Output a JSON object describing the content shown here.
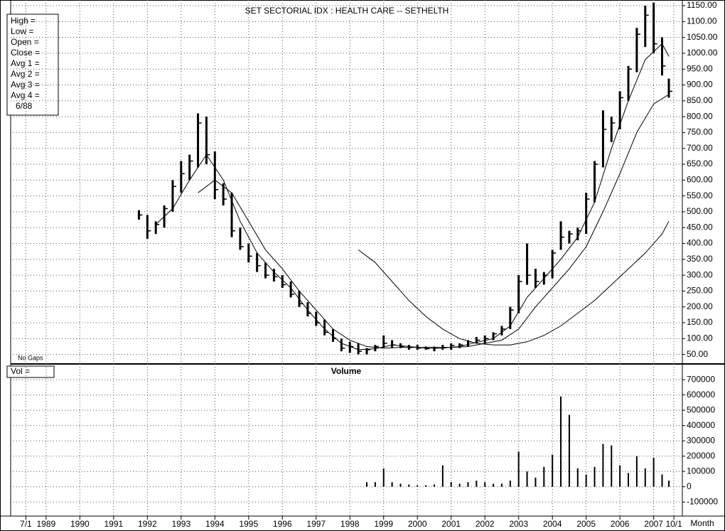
{
  "chart_data": [
    {
      "type": "ohlc",
      "title": "SET  SECTORIAL  IDX : HEALTH CARE -- SETHELTH",
      "info_labels": [
        "High  =",
        "Low   =",
        "Open  =",
        "Close =",
        "Avg 1 =",
        "Avg 2 =",
        "Avg 3 =",
        "Avg 4 =",
        "6/88"
      ],
      "note": "No Gaps",
      "x": [
        1992.25,
        1992.5,
        1992.75,
        1993.0,
        1993.25,
        1993.5,
        1993.75,
        1994.0,
        1994.25,
        1994.5,
        1994.75,
        1995.0,
        1995.25,
        1995.5,
        1995.75,
        1996.0,
        1996.25,
        1996.5,
        1996.75,
        1997.0,
        1997.25,
        1997.5,
        1997.75,
        1998.0,
        1998.25,
        1998.5,
        1998.75,
        1999.0,
        1999.25,
        1999.5,
        1999.75,
        2000.0,
        2000.25,
        2000.5,
        2000.75,
        2001.0,
        2001.25,
        2001.5,
        2001.75,
        2002.0,
        2002.25,
        2002.5,
        2002.75,
        2003.0,
        2003.25,
        2003.5,
        2003.75,
        2004.0,
        2004.25,
        2004.5,
        2004.75,
        2005.0,
        2005.25,
        2005.5,
        2005.75,
        2006.0,
        2006.25,
        2006.5,
        2006.75,
        2007.0,
        2007.25,
        2007.5,
        2007.75,
        2007.95
      ],
      "high": [
        505,
        490,
        470,
        520,
        600,
        660,
        680,
        810,
        800,
        690,
        590,
        560,
        450,
        400,
        370,
        340,
        320,
        300,
        280,
        250,
        215,
        185,
        160,
        130,
        100,
        90,
        85,
        70,
        80,
        110,
        95,
        85,
        80,
        80,
        75,
        75,
        80,
        85,
        85,
        95,
        105,
        110,
        120,
        140,
        200,
        300,
        400,
        320,
        310,
        380,
        470,
        440,
        450,
        560,
        660,
        820,
        800,
        880,
        960,
        1080,
        1150,
        1160,
        1050,
        920
      ],
      "low": [
        475,
        415,
        430,
        450,
        500,
        560,
        600,
        640,
        650,
        540,
        520,
        420,
        380,
        340,
        310,
        290,
        280,
        260,
        230,
        200,
        170,
        140,
        110,
        90,
        60,
        55,
        50,
        50,
        60,
        70,
        70,
        70,
        65,
        65,
        65,
        60,
        65,
        65,
        70,
        75,
        85,
        85,
        95,
        110,
        130,
        180,
        270,
        260,
        270,
        290,
        380,
        400,
        410,
        430,
        530,
        640,
        720,
        760,
        850,
        940,
        1020,
        1000,
        930,
        860
      ],
      "close": [
        490,
        440,
        460,
        510,
        580,
        620,
        660,
        780,
        680,
        570,
        540,
        440,
        390,
        360,
        330,
        300,
        295,
        270,
        240,
        210,
        180,
        150,
        120,
        100,
        70,
        75,
        60,
        65,
        75,
        85,
        80,
        75,
        72,
        70,
        68,
        70,
        72,
        78,
        80,
        90,
        95,
        100,
        115,
        130,
        190,
        280,
        300,
        280,
        300,
        370,
        420,
        430,
        440,
        540,
        650,
        760,
        780,
        860,
        950,
        1060,
        1120,
        1030,
        960,
        880
      ],
      "series": [
        {
          "name": "Avg 1",
          "color": "#000000",
          "x": [
            1992.75,
            1993.25,
            1993.75,
            1994.25,
            1994.75,
            1995.25,
            1995.75,
            1996.25,
            1996.75,
            1997.25,
            1997.75,
            1998.25,
            1998.75,
            1999.25,
            1999.75,
            2000.25,
            2000.75,
            2001.25,
            2001.75,
            2002.25,
            2002.75,
            2003.25,
            2003.75,
            2004.25,
            2004.75,
            2005.25,
            2005.75,
            2006.25,
            2006.75,
            2007.25,
            2007.75,
            2007.95
          ],
          "values": [
            460,
            510,
            600,
            680,
            600,
            470,
            370,
            310,
            260,
            190,
            130,
            85,
            65,
            68,
            80,
            75,
            70,
            70,
            75,
            88,
            100,
            140,
            230,
            290,
            350,
            420,
            530,
            700,
            850,
            980,
            1030,
            990
          ]
        },
        {
          "name": "Avg 2",
          "color": "#000000",
          "x": [
            1994.0,
            1994.5,
            1995.0,
            1995.5,
            1996.0,
            1996.5,
            1997.0,
            1997.5,
            1998.0,
            1998.5,
            1999.0,
            1999.5,
            2000.0,
            2000.5,
            2001.0,
            2001.5,
            2002.0,
            2002.5,
            2003.0,
            2003.5,
            2004.0,
            2004.5,
            2005.0,
            2005.5,
            2006.0,
            2006.5,
            2007.0,
            2007.5,
            2007.95
          ],
          "values": [
            560,
            600,
            560,
            470,
            380,
            320,
            250,
            190,
            130,
            95,
            75,
            70,
            72,
            72,
            72,
            72,
            75,
            85,
            95,
            130,
            200,
            260,
            320,
            390,
            500,
            620,
            750,
            840,
            870
          ]
        },
        {
          "name": "Avg 3",
          "color": "#000000",
          "x": [
            1998.75,
            1999.25,
            1999.75,
            2000.25,
            2000.75,
            2001.25,
            2001.75,
            2002.25,
            2002.75,
            2003.25,
            2003.75,
            2004.25,
            2004.75,
            2005.25,
            2005.75,
            2006.25,
            2006.75,
            2007.25,
            2007.75,
            2007.95
          ],
          "values": [
            380,
            340,
            280,
            220,
            170,
            130,
            100,
            85,
            80,
            80,
            90,
            110,
            140,
            180,
            220,
            270,
            320,
            370,
            430,
            470
          ]
        }
      ],
      "xlim": [
        1988.45,
        2008.35
      ],
      "xticks": [
        {
          "value": 1988.9,
          "label": "7/1"
        },
        {
          "value": 1989.5,
          "label": "1989"
        },
        {
          "value": 1990.5,
          "label": "1990"
        },
        {
          "value": 1991.5,
          "label": "1991"
        },
        {
          "value": 1992.5,
          "label": "1992"
        },
        {
          "value": 1993.5,
          "label": "1993"
        },
        {
          "value": 1994.5,
          "label": "1994"
        },
        {
          "value": 1995.5,
          "label": "1995"
        },
        {
          "value": 1996.5,
          "label": "1996"
        },
        {
          "value": 1997.5,
          "label": "1997"
        },
        {
          "value": 1998.5,
          "label": "1998"
        },
        {
          "value": 1999.5,
          "label": "1999"
        },
        {
          "value": 2000.5,
          "label": "2000"
        },
        {
          "value": 2001.5,
          "label": "2001"
        },
        {
          "value": 2002.5,
          "label": "2002"
        },
        {
          "value": 2003.5,
          "label": "2003"
        },
        {
          "value": 2004.5,
          "label": "2004"
        },
        {
          "value": 2005.5,
          "label": "2005"
        },
        {
          "value": 2006.5,
          "label": "2006"
        },
        {
          "value": 2007.5,
          "label": "2007"
        },
        {
          "value": 2008.1,
          "label": "10/1"
        }
      ],
      "ylim": [
        20,
        1168
      ],
      "yticks": [
        {
          "value": 50,
          "label": "50.00"
        },
        {
          "value": 100,
          "label": "100.00"
        },
        {
          "value": 150,
          "label": "150.00"
        },
        {
          "value": 200,
          "label": "200.00"
        },
        {
          "value": 250,
          "label": "250.00"
        },
        {
          "value": 300,
          "label": "300.00"
        },
        {
          "value": 350,
          "label": "350.00"
        },
        {
          "value": 400,
          "label": "400.00"
        },
        {
          "value": 450,
          "label": "450.00"
        },
        {
          "value": 500,
          "label": "500.00"
        },
        {
          "value": 550,
          "label": "550.00"
        },
        {
          "value": 600,
          "label": "600.00"
        },
        {
          "value": 650,
          "label": "650.00"
        },
        {
          "value": 700,
          "label": "700.00"
        },
        {
          "value": 750,
          "label": "750.00"
        },
        {
          "value": 800,
          "label": "800.00"
        },
        {
          "value": 850,
          "label": "850.00"
        },
        {
          "value": 900,
          "label": "900.00"
        },
        {
          "value": 950,
          "label": "950.00"
        },
        {
          "value": 1000,
          "label": "1000.00"
        },
        {
          "value": 1050,
          "label": "1050.00"
        },
        {
          "value": 1100,
          "label": "1100.00"
        },
        {
          "value": 1150,
          "label": "1150.00"
        }
      ],
      "grid": true
    },
    {
      "type": "bar",
      "title": "Volume",
      "info_label": "Vol   =",
      "xlabel": "Month",
      "color": "#000000",
      "x": [
        1999.0,
        1999.25,
        1999.5,
        1999.75,
        2000.0,
        2000.25,
        2000.5,
        2000.75,
        2001.0,
        2001.25,
        2001.5,
        2001.75,
        2002.0,
        2002.25,
        2002.5,
        2002.75,
        2003.0,
        2003.25,
        2003.5,
        2003.75,
        2004.0,
        2004.25,
        2004.5,
        2004.75,
        2005.0,
        2005.25,
        2005.5,
        2005.75,
        2006.0,
        2006.25,
        2006.5,
        2006.75,
        2007.0,
        2007.25,
        2007.5,
        2007.75,
        2007.95
      ],
      "values": [
        30000,
        30000,
        120000,
        30000,
        20000,
        15000,
        10000,
        10000,
        15000,
        140000,
        30000,
        20000,
        30000,
        40000,
        30000,
        20000,
        20000,
        40000,
        230000,
        100000,
        60000,
        130000,
        210000,
        590000,
        470000,
        120000,
        80000,
        130000,
        280000,
        270000,
        140000,
        90000,
        200000,
        120000,
        190000,
        80000,
        40000
      ],
      "xlim": [
        1988.45,
        2008.35
      ],
      "ylim": [
        -191600,
        798000
      ],
      "yticks": [
        -100000,
        0,
        100000,
        200000,
        300000,
        400000,
        500000,
        600000,
        700000
      ],
      "grid": true
    }
  ]
}
